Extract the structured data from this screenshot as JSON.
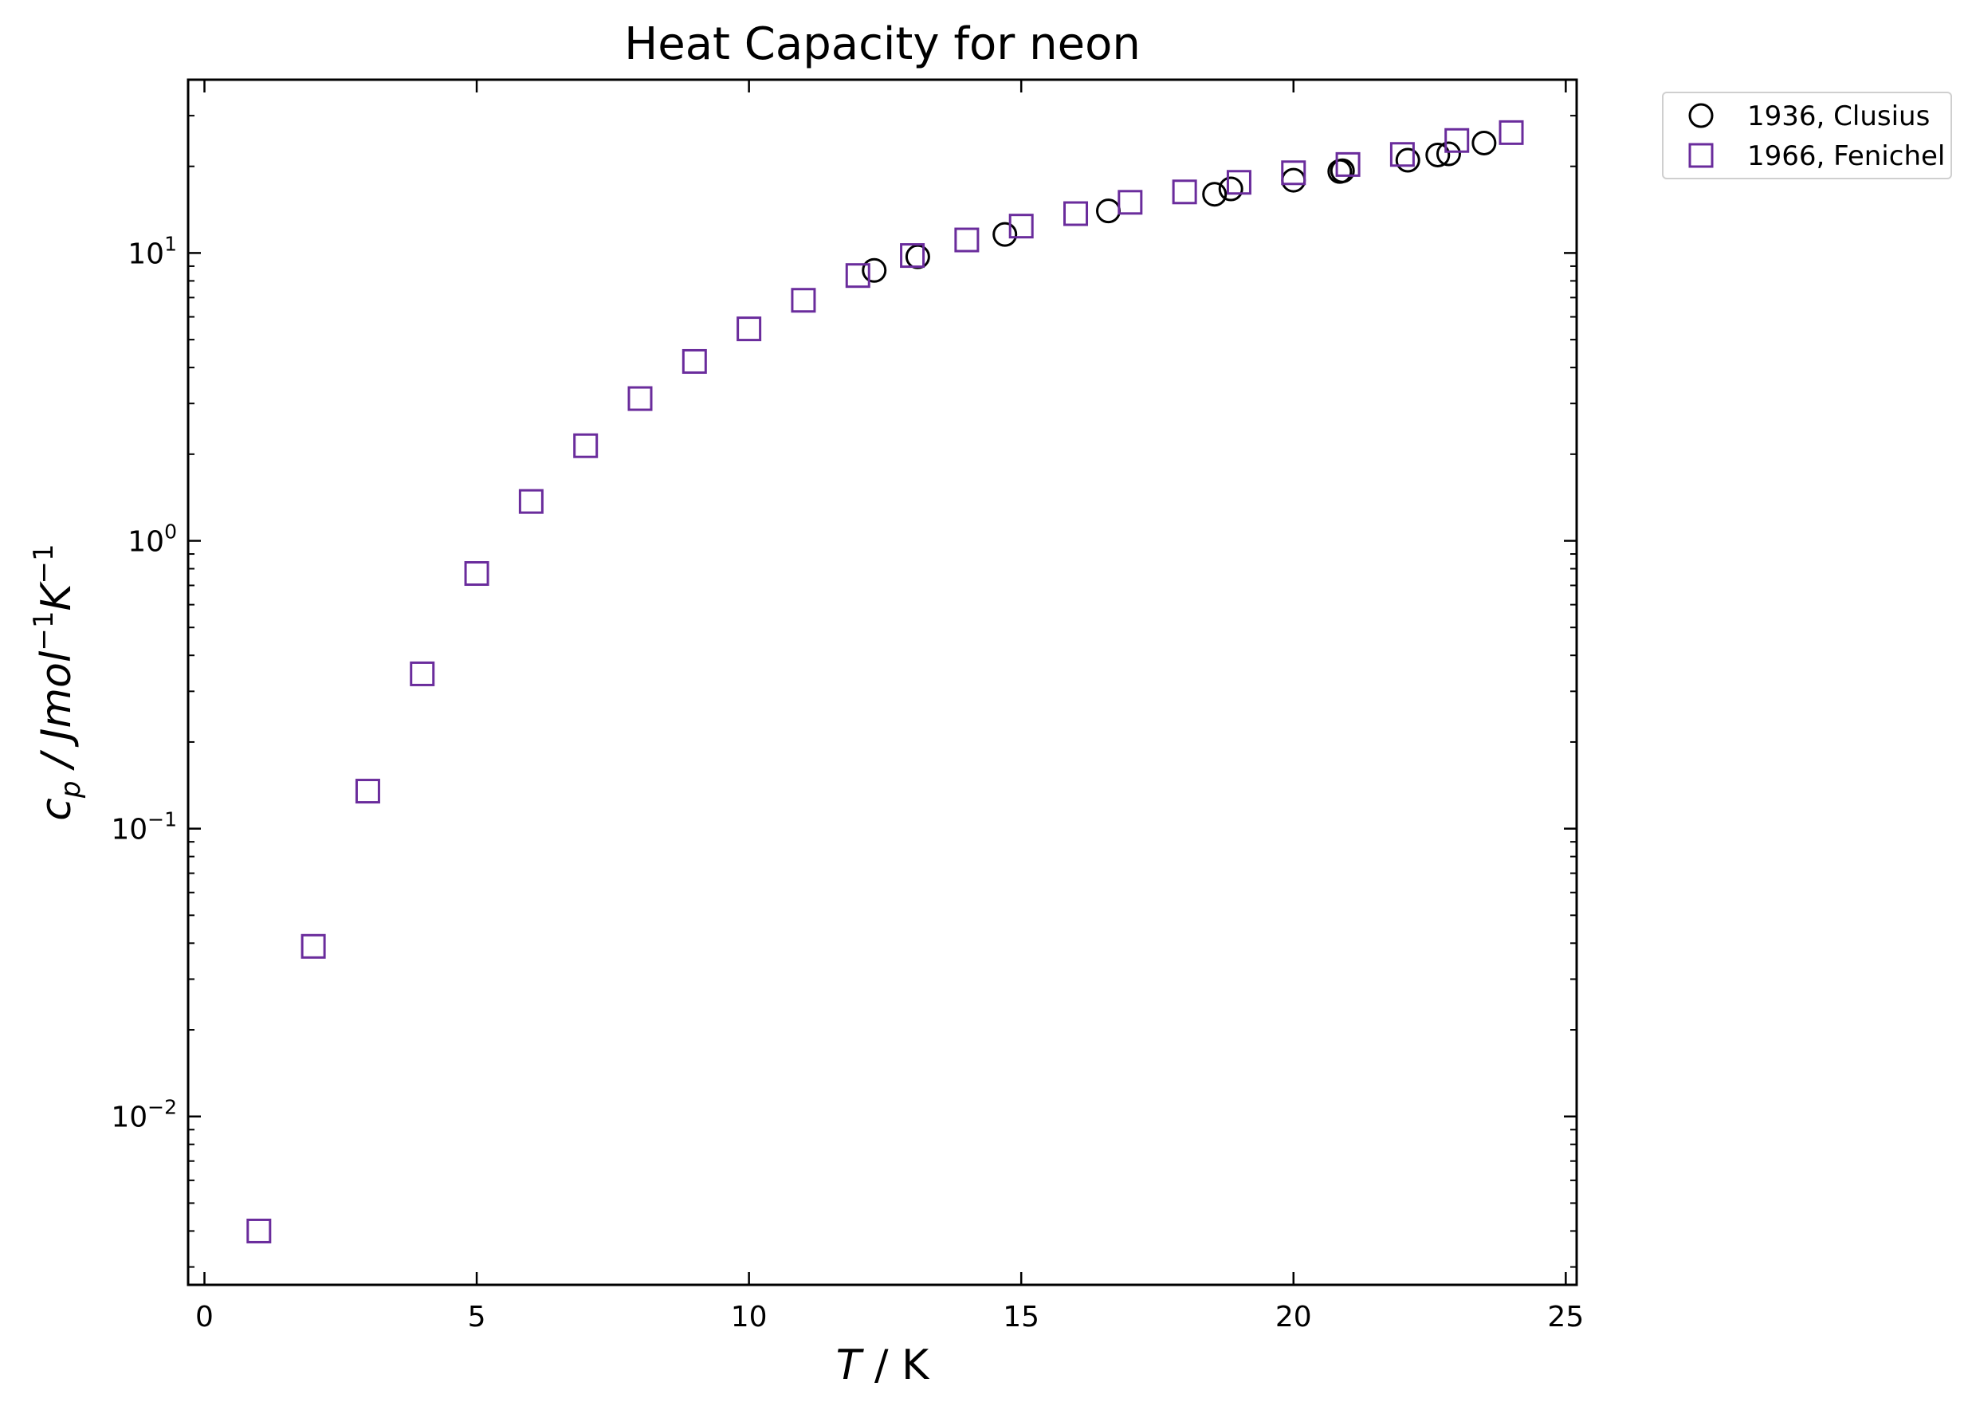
{
  "chart_data": {
    "type": "scatter",
    "title": "Heat Capacity for neon",
    "xlabel": {
      "italic": "T",
      "rest": " / K"
    },
    "ylabel": {
      "base": "c",
      "sub": "p",
      "rest": " / Jmol",
      "sup1": "−1",
      "k": "K",
      "sup2": "−1"
    },
    "xscale": "linear",
    "yscale": "log",
    "xlim": [
      -0.3,
      25.2
    ],
    "ylim": [
      0.0026,
      40
    ],
    "xticks": [
      0,
      5,
      10,
      15,
      20,
      25
    ],
    "xtick_labels": [
      "0",
      "5",
      "10",
      "15",
      "20",
      "25"
    ],
    "yticks": [
      0.01,
      0.1,
      1,
      10
    ],
    "ytick_labels": [
      {
        "base": "10",
        "exp": "−2"
      },
      {
        "base": "10",
        "exp": "−1"
      },
      {
        "base": "10",
        "exp": "0"
      },
      {
        "base": "10",
        "exp": "1"
      }
    ],
    "tick_direction": "in",
    "grid": false,
    "legend_position": "outside upper right",
    "series": [
      {
        "name": "1936, Clusius",
        "marker": "circle",
        "color": "#000000",
        "points": [
          [
            12.3,
            8.7
          ],
          [
            13.1,
            9.7
          ],
          [
            14.7,
            11.6
          ],
          [
            16.6,
            14.0
          ],
          [
            18.55,
            16.0
          ],
          [
            18.85,
            16.7
          ],
          [
            20.0,
            17.9
          ],
          [
            20.85,
            19.2
          ],
          [
            20.9,
            19.3
          ],
          [
            22.1,
            21.0
          ],
          [
            22.65,
            21.9
          ],
          [
            22.85,
            22.1
          ],
          [
            23.5,
            24.1
          ]
        ]
      },
      {
        "name": "1966, Fenichel",
        "marker": "square",
        "color": "#6a2c9c",
        "points": [
          [
            1,
            0.004
          ],
          [
            2,
            0.039
          ],
          [
            3,
            0.135
          ],
          [
            4,
            0.345
          ],
          [
            5,
            0.77
          ],
          [
            6,
            1.37
          ],
          [
            7,
            2.14
          ],
          [
            8,
            3.12
          ],
          [
            9,
            4.2
          ],
          [
            10,
            5.45
          ],
          [
            11,
            6.85
          ],
          [
            12,
            8.35
          ],
          [
            13,
            9.8
          ],
          [
            14,
            11.1
          ],
          [
            15,
            12.4
          ],
          [
            16,
            13.7
          ],
          [
            17,
            15.0
          ],
          [
            18,
            16.3
          ],
          [
            19,
            17.6
          ],
          [
            20,
            19.0
          ],
          [
            21,
            20.3
          ],
          [
            22,
            22.0
          ],
          [
            23,
            24.6
          ],
          [
            24,
            26.2
          ]
        ]
      }
    ]
  }
}
